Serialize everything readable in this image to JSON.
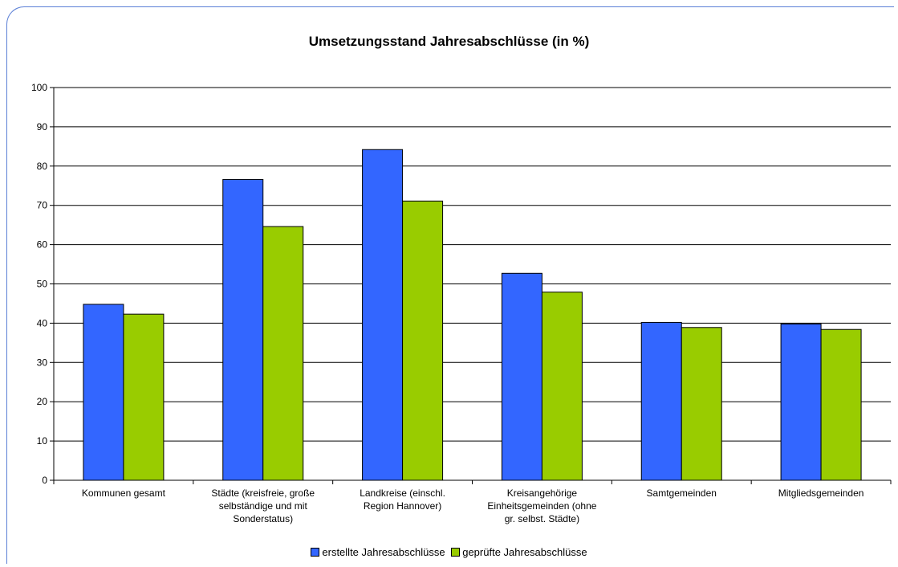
{
  "chart_data": {
    "type": "bar",
    "title": "Umsetzungsstand Jahresabschlüsse (in %)",
    "xlabel": "",
    "ylabel": "",
    "ylim": [
      0,
      100
    ],
    "yticks": [
      0,
      10,
      20,
      30,
      40,
      50,
      60,
      70,
      80,
      90,
      100
    ],
    "grid": true,
    "legend_position": "bottom",
    "categories": [
      [
        "Kommunen gesamt"
      ],
      [
        "Städte (kreisfreie, große",
        "selbständige und mit",
        "Sonderstatus)"
      ],
      [
        "Landkreise (einschl.",
        "Region Hannover)"
      ],
      [
        "Kreisangehörige",
        "Einheitsgemeinden (ohne",
        "gr. selbst. Städte)"
      ],
      [
        "Samtgemeinden"
      ],
      [
        "Mitgliedsgemeinden"
      ]
    ],
    "series": [
      {
        "name": "erstellte Jahresabschlüsse",
        "color": "#3366ff",
        "values": [
          44.8,
          76.6,
          84.2,
          52.7,
          40.2,
          39.8
        ]
      },
      {
        "name": "geprüfte Jahresabschlüsse",
        "color": "#99cc00",
        "values": [
          42.3,
          64.6,
          71.1,
          47.9,
          38.9,
          38.4
        ]
      }
    ]
  }
}
